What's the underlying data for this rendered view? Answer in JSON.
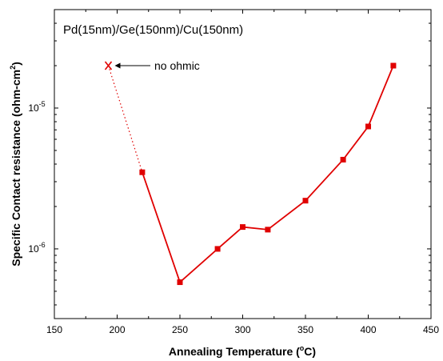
{
  "chart_data": {
    "type": "line",
    "title": "Pd(15nm)/Ge(150nm)/Cu(150nm)",
    "xlabel": "Annealing Temperature (°C)",
    "xlabel_parts": {
      "before": "Annealing Temperature (",
      "sup": "o",
      "after": "C)"
    },
    "ylabel": "Specific Contact resistance (ohm-cm²)",
    "ylabel_parts": {
      "before": "Specific Contact resistance (ohm-cm",
      "sup": "2",
      "after": ")"
    },
    "xlim": [
      150,
      450
    ],
    "ylim": [
      3.2e-07,
      5e-05
    ],
    "yscale": "log",
    "color": "#e00000",
    "x_ticks": [
      "150",
      "200",
      "250",
      "300",
      "350",
      "400",
      "450"
    ],
    "y_ticks": [
      {
        "value": 1e-06,
        "base": "10",
        "exp": "-6"
      },
      {
        "value": 1e-05,
        "base": "10",
        "exp": "-5"
      }
    ],
    "series": [
      {
        "x": [
          220,
          250,
          280,
          300,
          320,
          350,
          380,
          400,
          420
        ],
        "y": [
          3.5e-06,
          5.8e-07,
          1e-06,
          1.43e-06,
          1.37e-06,
          2.2e-06,
          4.3e-06,
          7.4e-06,
          2e-05
        ],
        "marker": "square",
        "line": "solid"
      }
    ],
    "no_ohmic_point": {
      "x": 193,
      "y": 2e-05,
      "marker": "X"
    },
    "annotation": {
      "text": "no ohmic",
      "points_to": "no_ohmic_point"
    },
    "grid": false,
    "legend": "none"
  }
}
